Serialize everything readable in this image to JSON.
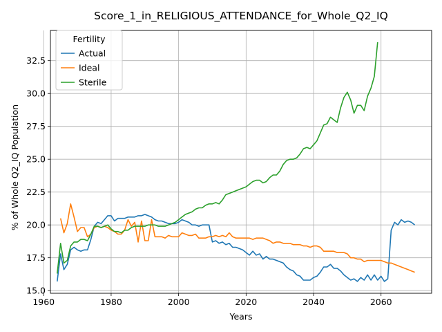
{
  "chart_data": {
    "type": "line",
    "title": "Score_1_in_RELIGIOUS_ATTENDANCE_for_Whole_Q2_IQ",
    "xlabel": "Years",
    "ylabel": "% of Whole Q2_IQ Population",
    "xlim": [
      1962,
      2075
    ],
    "ylim": [
      14.8,
      34.8
    ],
    "xticks": [
      1960,
      1980,
      2000,
      2020,
      2040,
      2060
    ],
    "yticks": [
      15.0,
      17.5,
      20.0,
      22.5,
      25.0,
      27.5,
      30.0,
      32.5
    ],
    "grid": true,
    "legend": {
      "title": "Fertility",
      "placement": "upper-left"
    },
    "series": [
      {
        "name": "Actual",
        "color": "#1f77b4",
        "x": [
          1964,
          1965,
          1966,
          1967,
          1968,
          1969,
          1970,
          1971,
          1972,
          1973,
          1974,
          1975,
          1976,
          1977,
          1978,
          1979,
          1980,
          1981,
          1982,
          1983,
          1984,
          1985,
          1986,
          1987,
          1988,
          1989,
          1990,
          1991,
          1992,
          1993,
          1994,
          1995,
          1996,
          1997,
          1998,
          1999,
          2000,
          2001,
          2002,
          2003,
          2004,
          2005,
          2006,
          2007,
          2008,
          2009,
          2010,
          2011,
          2012,
          2013,
          2014,
          2015,
          2016,
          2017,
          2018,
          2019,
          2020,
          2021,
          2022,
          2023,
          2024,
          2025,
          2026,
          2027,
          2028,
          2029,
          2030,
          2031,
          2032,
          2033,
          2034,
          2035,
          2036,
          2037,
          2038,
          2039,
          2040,
          2041,
          2042,
          2043,
          2044,
          2045,
          2046,
          2047,
          2048,
          2049,
          2050,
          2051,
          2052,
          2053,
          2054,
          2055,
          2056,
          2057,
          2058,
          2059,
          2060,
          2061,
          2062,
          2063,
          2064,
          2065,
          2066,
          2067,
          2068,
          2069,
          2070
        ],
        "y": [
          15.7,
          17.8,
          16.6,
          17.0,
          18.1,
          18.3,
          18.1,
          18.0,
          18.1,
          18.1,
          18.9,
          19.9,
          20.2,
          20.1,
          20.4,
          20.7,
          20.7,
          20.3,
          20.5,
          20.5,
          20.5,
          20.6,
          20.6,
          20.6,
          20.7,
          20.7,
          20.8,
          20.7,
          20.6,
          20.4,
          20.3,
          20.3,
          20.2,
          20.1,
          20.1,
          20.1,
          20.2,
          20.4,
          20.3,
          20.2,
          20.0,
          20.0,
          19.9,
          20.0,
          20.0,
          20.0,
          18.7,
          18.8,
          18.6,
          18.7,
          18.5,
          18.6,
          18.3,
          18.3,
          18.2,
          18.1,
          17.9,
          17.7,
          18.0,
          17.7,
          17.8,
          17.4,
          17.6,
          17.4,
          17.4,
          17.3,
          17.2,
          17.1,
          16.8,
          16.6,
          16.5,
          16.2,
          16.1,
          15.8,
          15.8,
          15.8,
          16.0,
          16.1,
          16.4,
          16.8,
          16.8,
          17.0,
          16.7,
          16.7,
          16.5,
          16.2,
          16.0,
          15.8,
          15.9,
          15.7,
          16.0,
          15.8,
          16.2,
          15.8,
          16.2,
          15.8,
          16.1,
          15.7,
          15.9,
          19.6,
          20.2,
          20.0,
          20.4,
          20.2,
          20.3,
          20.2,
          20.0
        ]
      },
      {
        "name": "Ideal",
        "color": "#ff7f0e",
        "x": [
          1965,
          1966,
          1967,
          1968,
          1969,
          1970,
          1971,
          1972,
          1973,
          1974,
          1975,
          1976,
          1977,
          1978,
          1979,
          1980,
          1981,
          1982,
          1983,
          1984,
          1985,
          1986,
          1987,
          1988,
          1989,
          1990,
          1991,
          1992,
          1993,
          1994,
          1995,
          1996,
          1997,
          1998,
          1999,
          2000,
          2001,
          2002,
          2003,
          2004,
          2005,
          2006,
          2007,
          2008,
          2009,
          2010,
          2011,
          2012,
          2013,
          2014,
          2015,
          2016,
          2017,
          2018,
          2019,
          2020,
          2021,
          2022,
          2023,
          2024,
          2025,
          2026,
          2027,
          2028,
          2029,
          2030,
          2031,
          2032,
          2033,
          2034,
          2035,
          2036,
          2037,
          2038,
          2039,
          2040,
          2041,
          2042,
          2043,
          2044,
          2045,
          2046,
          2047,
          2048,
          2049,
          2050,
          2051,
          2052,
          2053,
          2054,
          2055,
          2056,
          2057,
          2058,
          2059,
          2060,
          2061,
          2062,
          2063,
          2064,
          2065,
          2066,
          2067,
          2068,
          2069,
          2070
        ],
        "y": [
          20.5,
          19.4,
          20.1,
          21.6,
          20.6,
          19.5,
          19.8,
          19.8,
          19.1,
          19.3,
          19.8,
          19.9,
          19.8,
          19.9,
          19.8,
          19.6,
          19.5,
          19.3,
          19.3,
          19.6,
          20.4,
          19.9,
          20.2,
          18.7,
          20.3,
          18.8,
          18.8,
          20.4,
          19.1,
          19.1,
          19.1,
          19.0,
          19.2,
          19.1,
          19.1,
          19.1,
          19.4,
          19.3,
          19.2,
          19.2,
          19.3,
          19.0,
          19.0,
          19.0,
          19.1,
          19.1,
          19.2,
          19.1,
          19.2,
          19.1,
          19.4,
          19.1,
          19.0,
          19.0,
          19.0,
          19.0,
          19.0,
          18.9,
          19.0,
          19.0,
          19.0,
          18.9,
          18.8,
          18.6,
          18.7,
          18.7,
          18.6,
          18.6,
          18.6,
          18.5,
          18.5,
          18.5,
          18.4,
          18.4,
          18.3,
          18.4,
          18.4,
          18.3,
          18.0,
          18.0,
          18.0,
          18.0,
          17.9,
          17.9,
          17.9,
          17.8,
          17.5,
          17.5,
          17.4,
          17.4,
          17.2,
          17.3,
          17.3,
          17.3,
          17.3,
          17.3,
          17.2,
          17.1,
          17.1,
          17.0,
          16.9,
          16.8,
          16.7,
          16.6,
          16.5,
          16.4
        ]
      },
      {
        "name": "Sterile",
        "color": "#2ca02c",
        "x": [
          1964,
          1965,
          1966,
          1967,
          1968,
          1969,
          1970,
          1971,
          1972,
          1973,
          1974,
          1975,
          1976,
          1977,
          1978,
          1979,
          1980,
          1981,
          1982,
          1983,
          1984,
          1985,
          1986,
          1987,
          1988,
          1989,
          1990,
          1991,
          1992,
          1993,
          1994,
          1995,
          1996,
          1997,
          1998,
          1999,
          2000,
          2001,
          2002,
          2003,
          2004,
          2005,
          2006,
          2007,
          2008,
          2009,
          2010,
          2011,
          2012,
          2013,
          2014,
          2015,
          2016,
          2017,
          2018,
          2019,
          2020,
          2021,
          2022,
          2023,
          2024,
          2025,
          2026,
          2027,
          2028,
          2029,
          2030,
          2031,
          2032,
          2033,
          2034,
          2035,
          2036,
          2037,
          2038,
          2039,
          2040,
          2041,
          2042,
          2043,
          2044,
          2045,
          2046,
          2047,
          2048,
          2049,
          2050,
          2051,
          2052,
          2053,
          2054,
          2055,
          2056,
          2057,
          2058,
          2059
        ],
        "y": [
          16.3,
          18.6,
          17.1,
          17.3,
          18.4,
          18.7,
          18.7,
          18.9,
          18.9,
          18.8,
          19.3,
          19.9,
          19.9,
          19.8,
          19.9,
          20.0,
          19.7,
          19.5,
          19.5,
          19.4,
          19.6,
          19.6,
          19.8,
          19.9,
          19.9,
          19.9,
          19.9,
          20.0,
          20.0,
          20.0,
          19.9,
          19.9,
          19.9,
          20.0,
          20.1,
          20.2,
          20.4,
          20.6,
          20.8,
          20.9,
          21.0,
          21.2,
          21.3,
          21.3,
          21.5,
          21.6,
          21.6,
          21.7,
          21.6,
          21.9,
          22.3,
          22.4,
          22.5,
          22.6,
          22.7,
          22.8,
          22.9,
          23.1,
          23.3,
          23.4,
          23.4,
          23.2,
          23.3,
          23.6,
          23.8,
          23.8,
          24.1,
          24.6,
          24.9,
          25.0,
          25.0,
          25.1,
          25.4,
          25.8,
          25.9,
          25.8,
          26.1,
          26.4,
          27.0,
          27.6,
          27.7,
          28.2,
          28.0,
          27.8,
          28.9,
          29.7,
          30.1,
          29.5,
          28.5,
          29.1,
          29.1,
          28.7,
          29.8,
          30.4,
          31.3,
          33.9
        ]
      }
    ]
  }
}
